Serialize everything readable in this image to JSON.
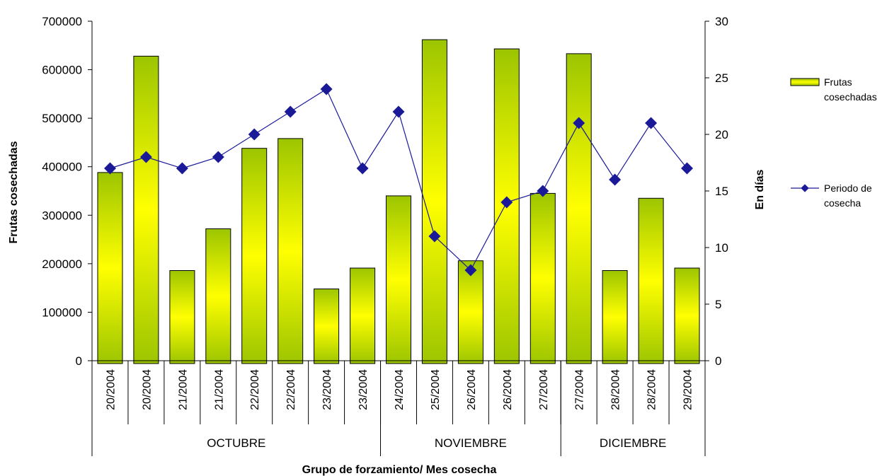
{
  "chart_data": {
    "type": "bar+line",
    "title": "",
    "xlabel": "Grupo de forzamiento/ Mes cosecha",
    "ylabel_left": "Frutas cosechadas",
    "ylabel_right": "En días",
    "ylim_left": [
      0,
      700000
    ],
    "ylim_right": [
      0,
      30
    ],
    "yticks_left": [
      "0",
      "100000",
      "200000",
      "300000",
      "400000",
      "500000",
      "600000",
      "700000"
    ],
    "yticks_right": [
      "0",
      "5",
      "10",
      "15",
      "20",
      "25",
      "30"
    ],
    "categories": [
      "20/2004",
      "20/2004",
      "21/2004",
      "21/2004",
      "22/2004",
      "22/2004",
      "23/2004",
      "23/2004",
      "24/2004",
      "25/2004",
      "26/2004",
      "26/2004",
      "27/2004",
      "27/2004",
      "28/2004",
      "28/2004",
      "29/2004"
    ],
    "groups": [
      {
        "label": "OCTUBRE",
        "count": 8
      },
      {
        "label": "NOVIEMBRE",
        "count": 5
      },
      {
        "label": "DICIEMBRE",
        "count": 4
      }
    ],
    "series": [
      {
        "name": "Frutas cosechadas",
        "type": "bar",
        "axis": "left",
        "color": "#c8d800",
        "values": [
          388000,
          628000,
          186000,
          272000,
          438000,
          458000,
          148000,
          191000,
          340000,
          662000,
          206000,
          643000,
          345000,
          633000,
          186000,
          335000,
          191000
        ]
      },
      {
        "name": "Periodo de cosecha",
        "type": "line",
        "axis": "right",
        "color": "#1a1a99",
        "values": [
          17,
          18,
          17,
          18,
          20,
          22,
          24,
          17,
          22,
          11,
          8,
          14,
          15,
          21,
          16,
          21,
          17
        ]
      }
    ],
    "legend_position": "right",
    "grid": false
  },
  "legend": {
    "bar_label_line1": "Frutas",
    "bar_label_line2": "cosechadas",
    "line_label_line1": "Periodo de",
    "line_label_line2": "cosecha"
  }
}
